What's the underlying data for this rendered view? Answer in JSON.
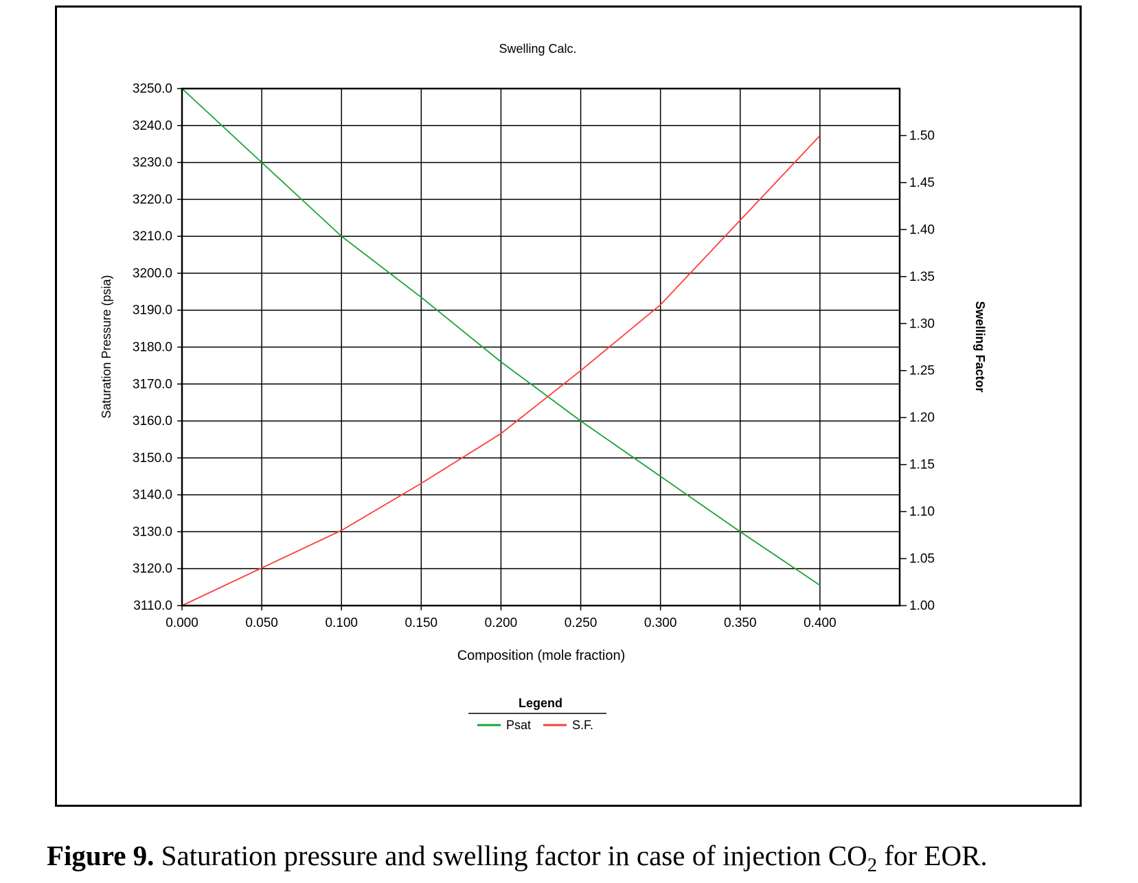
{
  "chart_data": {
    "type": "line",
    "title": "Swelling Calc.",
    "xlabel": "Composition (mole fraction)",
    "ylabel": "Saturation Pressure (psia)",
    "y2label": "Swelling Factor",
    "xlim": [
      0,
      0.45
    ],
    "ylim": [
      3110,
      3250
    ],
    "y2lim": [
      1.0,
      1.55
    ],
    "x_ticks": [
      0.0,
      0.05,
      0.1,
      0.15,
      0.2,
      0.25,
      0.3,
      0.35,
      0.4
    ],
    "x_tick_labels": [
      "0.000",
      "0.050",
      "0.100",
      "0.150",
      "0.200",
      "0.250",
      "0.300",
      "0.350",
      "0.400"
    ],
    "y_ticks": [
      3110,
      3120,
      3130,
      3140,
      3150,
      3160,
      3170,
      3180,
      3190,
      3200,
      3210,
      3220,
      3230,
      3240,
      3250
    ],
    "y_tick_labels": [
      "3110.0",
      "3120.0",
      "3130.0",
      "3140.0",
      "3150.0",
      "3160.0",
      "3170.0",
      "3180.0",
      "3190.0",
      "3200.0",
      "3210.0",
      "3220.0",
      "3230.0",
      "3240.0",
      "3250.0"
    ],
    "y2_ticks": [
      1.0,
      1.05,
      1.1,
      1.15,
      1.2,
      1.25,
      1.3,
      1.35,
      1.4,
      1.45,
      1.5
    ],
    "y2_tick_labels": [
      "1.00",
      "1.05",
      "1.10",
      "1.15",
      "1.20",
      "1.25",
      "1.30",
      "1.35",
      "1.40",
      "1.45",
      "1.50"
    ],
    "grid": true,
    "legend_title": "Legend",
    "legend_position": "bottom-center",
    "series": [
      {
        "name": "Psat",
        "axis": "left",
        "color": "#1aa33a",
        "x": [
          0.0,
          0.05,
          0.1,
          0.15,
          0.2,
          0.25,
          0.3,
          0.35,
          0.4
        ],
        "values": [
          3250.0,
          3230.0,
          3210.0,
          3193.5,
          3176.0,
          3160.0,
          3145.0,
          3130.0,
          3115.5
        ]
      },
      {
        "name": "S.F.",
        "axis": "right",
        "color": "#ff3b3b",
        "x": [
          0.0,
          0.05,
          0.1,
          0.15,
          0.2,
          0.25,
          0.3,
          0.35,
          0.4
        ],
        "values": [
          1.0,
          1.04,
          1.08,
          1.13,
          1.183,
          1.25,
          1.32,
          1.41,
          1.5
        ]
      }
    ]
  },
  "caption": {
    "label": "Figure 9.",
    "text_before": "Saturation pressure and swelling factor in case of injection CO",
    "subscript": "2",
    "text_after": " for EOR."
  }
}
